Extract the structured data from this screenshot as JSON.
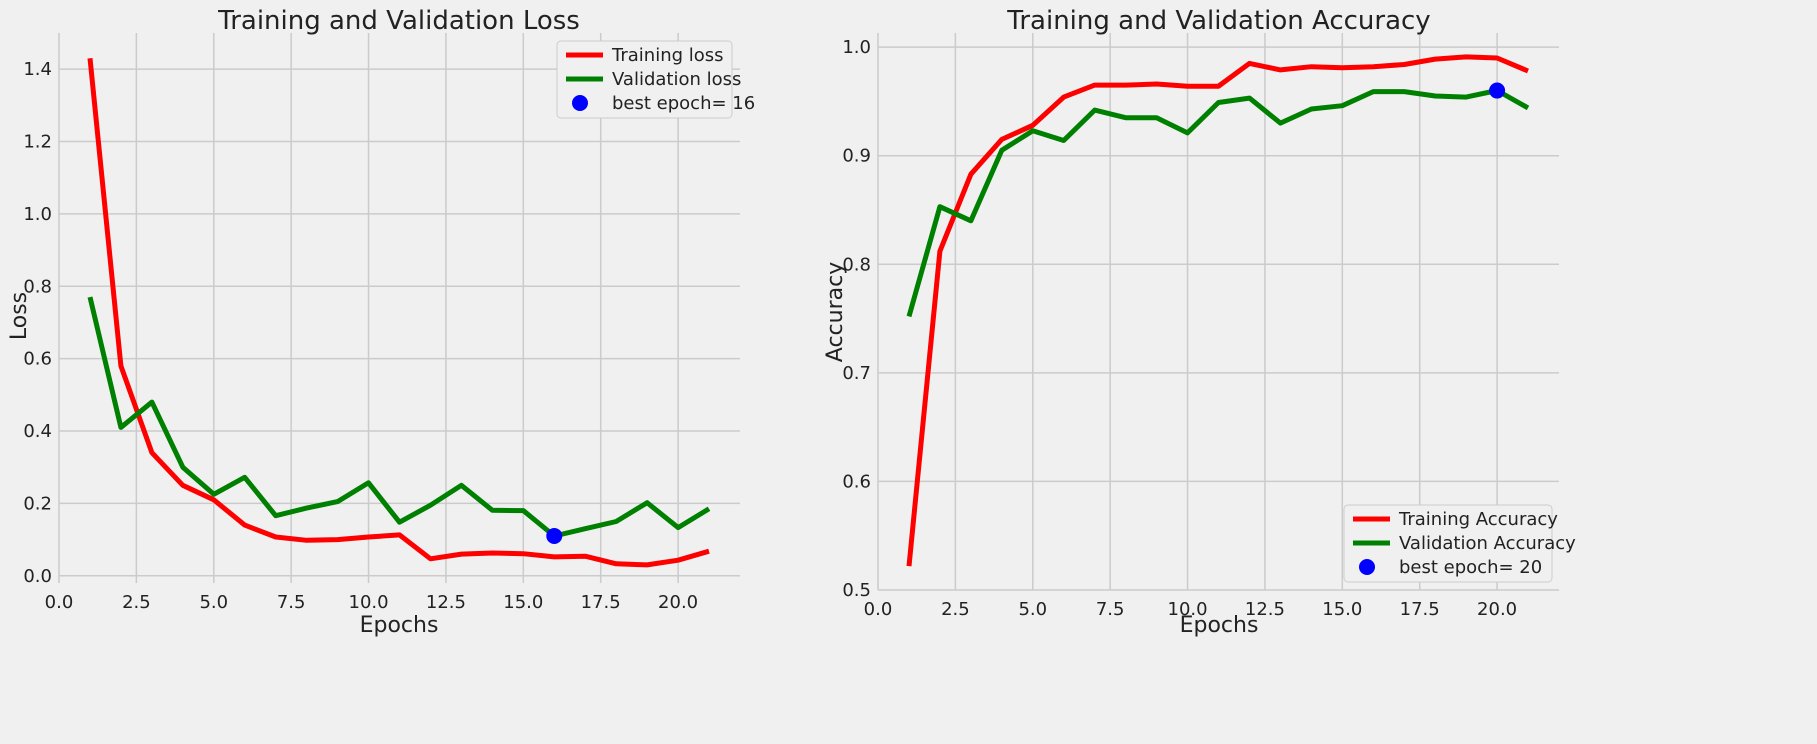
{
  "chart_data": [
    {
      "type": "line",
      "title": "Training and Validation Loss",
      "xlabel": "Epochs",
      "ylabel": "Loss",
      "xlim": [
        0,
        22
      ],
      "ylim": [
        -0.02,
        1.5
      ],
      "xticks": [
        0,
        2.5,
        5,
        7.5,
        10,
        12.5,
        15,
        17.5,
        20
      ],
      "xtick_labels": [
        "0.0",
        "2.5",
        "5.0",
        "7.5",
        "10.0",
        "12.5",
        "15.0",
        "17.5",
        "20.0"
      ],
      "yticks": [
        0,
        0.2,
        0.4,
        0.6,
        0.8,
        1.0,
        1.2,
        1.4
      ],
      "ytick_labels": [
        "0.0",
        "0.2",
        "0.4",
        "0.6",
        "0.8",
        "1.0",
        "1.2",
        "1.4"
      ],
      "grid": true,
      "legend_position": "top-right",
      "x": [
        1,
        2,
        3,
        4,
        5,
        6,
        7,
        8,
        9,
        10,
        11,
        12,
        13,
        14,
        15,
        16,
        17,
        18,
        19,
        20,
        21
      ],
      "series": [
        {
          "name": "Training loss",
          "color": "#ff0000",
          "values": [
            1.43,
            0.58,
            0.34,
            0.25,
            0.21,
            0.14,
            0.107,
            0.098,
            0.1,
            0.107,
            0.113,
            0.047,
            0.06,
            0.063,
            0.061,
            0.052,
            0.054,
            0.033,
            0.03,
            0.043,
            0.068
          ]
        },
        {
          "name": "Validation loss",
          "color": "#008000",
          "values": [
            0.77,
            0.41,
            0.48,
            0.3,
            0.225,
            0.272,
            0.166,
            0.187,
            0.205,
            0.257,
            0.148,
            0.195,
            0.25,
            0.181,
            0.18,
            0.11,
            0.13,
            0.15,
            0.202,
            0.133,
            0.185
          ]
        }
      ],
      "best_point": {
        "label": "best epoch= 16",
        "x": 16,
        "y": 0.11,
        "color": "#0000ff"
      }
    },
    {
      "type": "line",
      "title": "Training and Validation Accuracy",
      "xlabel": "Epochs",
      "ylabel": "Accuracy",
      "xlim": [
        0,
        22
      ],
      "ylim": [
        0.5,
        1.013
      ],
      "xticks": [
        0,
        2.5,
        5,
        7.5,
        10,
        12.5,
        15,
        17.5,
        20
      ],
      "xtick_labels": [
        "0.0",
        "2.5",
        "5.0",
        "7.5",
        "10.0",
        "12.5",
        "15.0",
        "17.5",
        "20.0"
      ],
      "yticks": [
        0.5,
        0.6,
        0.7,
        0.8,
        0.9,
        1.0
      ],
      "ytick_labels": [
        "0.5",
        "0.6",
        "0.7",
        "0.8",
        "0.9",
        "1.0"
      ],
      "grid": true,
      "legend_position": "bottom-right",
      "x": [
        1,
        2,
        3,
        4,
        5,
        6,
        7,
        8,
        9,
        10,
        11,
        12,
        13,
        14,
        15,
        16,
        17,
        18,
        19,
        20,
        21
      ],
      "series": [
        {
          "name": "Training Accuracy",
          "color": "#ff0000",
          "values": [
            0.522,
            0.812,
            0.883,
            0.915,
            0.928,
            0.954,
            0.965,
            0.965,
            0.966,
            0.964,
            0.964,
            0.985,
            0.979,
            0.982,
            0.981,
            0.982,
            0.984,
            0.989,
            0.991,
            0.99,
            0.978
          ]
        },
        {
          "name": "Validation Accuracy",
          "color": "#008000",
          "values": [
            0.752,
            0.853,
            0.84,
            0.905,
            0.923,
            0.914,
            0.942,
            0.935,
            0.935,
            0.921,
            0.949,
            0.953,
            0.93,
            0.943,
            0.946,
            0.959,
            0.959,
            0.955,
            0.954,
            0.96,
            0.944
          ]
        }
      ],
      "best_point": {
        "label": "best epoch= 20",
        "x": 20,
        "y": 0.96,
        "color": "#0000ff"
      }
    }
  ]
}
